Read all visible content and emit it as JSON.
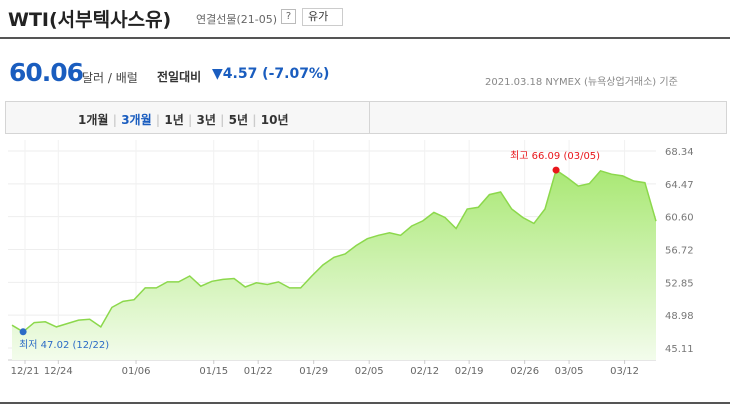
{
  "header": {
    "title": "WTI(서부텍사스유)",
    "subtitle": "연결선물(21-05)",
    "help": "?",
    "category_button": "유가"
  },
  "quote": {
    "price": "60.06",
    "unit": "달러 / 배럴",
    "change_label": "전일대비",
    "change": "▼4.57 (-7.07%)",
    "source": "2021.03.18 NYMEX (뉴욕상업거래소) 기준"
  },
  "tabs": {
    "items": [
      "1개월",
      "3개월",
      "1년",
      "3년",
      "5년",
      "10년"
    ],
    "selected": "3개월"
  },
  "chart_data": {
    "type": "area",
    "categories": [
      "12/21",
      null,
      null,
      "12/24",
      null,
      null,
      null,
      null,
      null,
      null,
      "01/06",
      null,
      null,
      null,
      null,
      null,
      null,
      "01/15",
      null,
      null,
      null,
      "01/22",
      null,
      null,
      null,
      null,
      "01/29",
      null,
      null,
      null,
      null,
      "02/05",
      null,
      null,
      null,
      null,
      "02/12",
      null,
      null,
      null,
      "02/19",
      null,
      null,
      null,
      null,
      "02/26",
      null,
      null,
      null,
      "03/05",
      null,
      null,
      null,
      null,
      "03/12",
      null,
      null,
      null,
      null
    ],
    "values": [
      47.8,
      47.02,
      48.1,
      48.2,
      47.6,
      48.0,
      48.4,
      48.5,
      47.6,
      49.9,
      50.6,
      50.8,
      52.2,
      52.2,
      52.9,
      52.9,
      53.6,
      52.4,
      52.98,
      53.2,
      53.3,
      52.3,
      52.8,
      52.6,
      52.9,
      52.2,
      52.2,
      53.6,
      54.9,
      55.8,
      56.2,
      57.2,
      58.0,
      58.4,
      58.7,
      58.4,
      59.5,
      60.1,
      61.1,
      60.5,
      59.2,
      61.5,
      61.7,
      63.2,
      63.5,
      61.5,
      60.5,
      59.8,
      61.5,
      66.09,
      65.2,
      64.2,
      64.5,
      66.0,
      65.6,
      65.4,
      64.8,
      64.6,
      60.06
    ],
    "color": "#8cd84c",
    "ylim": [
      45.11,
      68.34
    ],
    "yticks": [
      45.11,
      48.98,
      52.85,
      56.72,
      {
        "value": 60.6,
        "label": "60.60"
      },
      64.47,
      68.34
    ],
    "grid": true,
    "annotations": [
      {
        "text": "최고 66.09 (03/05)",
        "value": 66.09,
        "color": "#e8161b"
      },
      {
        "text": "최저 47.02 (12/22)",
        "value": 47.02,
        "color": "#2b6bc6"
      }
    ]
  }
}
